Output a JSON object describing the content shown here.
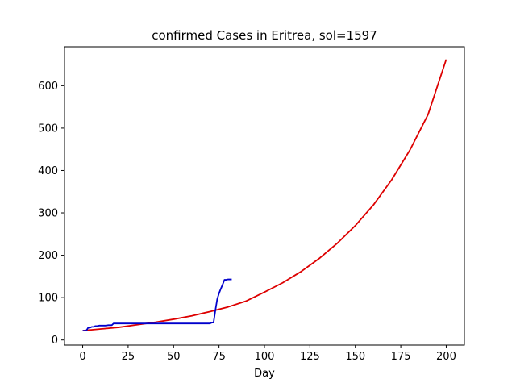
{
  "chart_data": {
    "type": "line",
    "title": "confirmed Cases in Eritrea, sol=1597",
    "xlabel": "Day",
    "ylabel": "",
    "xlim": [
      -10,
      210
    ],
    "ylim": [
      -12,
      692
    ],
    "xticks": [
      0,
      25,
      50,
      75,
      100,
      125,
      150,
      175,
      200
    ],
    "yticks": [
      0,
      100,
      200,
      300,
      400,
      500,
      600
    ],
    "grid": false,
    "legend": "none",
    "series": [
      {
        "color": "#dd0000",
        "kind": "model",
        "x": [
          0,
          10,
          20,
          30,
          40,
          50,
          60,
          70,
          80,
          90,
          100,
          110,
          120,
          130,
          140,
          150,
          160,
          170,
          180,
          190,
          200
        ],
        "y": [
          22,
          26,
          30,
          36,
          42,
          49,
          57,
          67,
          78,
          92,
          113,
          135,
          161,
          192,
          228,
          270,
          319,
          378,
          448,
          532,
          662
        ]
      },
      {
        "color": "#0000cc",
        "kind": "observed",
        "x": [
          0,
          1,
          2,
          3,
          4,
          5,
          6,
          7,
          8,
          9,
          10,
          11,
          12,
          13,
          14,
          15,
          16,
          17,
          20,
          30,
          40,
          50,
          60,
          68,
          69,
          70,
          71,
          72,
          73,
          74,
          75,
          76,
          77,
          78,
          79,
          80,
          81,
          82
        ],
        "y": [
          22,
          22,
          22,
          29,
          29,
          31,
          31,
          33,
          33,
          34,
          34,
          34,
          34,
          34,
          35,
          35,
          35,
          39,
          39,
          39,
          39,
          39,
          39,
          39,
          39,
          39,
          41,
          41,
          70,
          96,
          110,
          121,
          131,
          142,
          142,
          143,
          143,
          143
        ]
      }
    ]
  }
}
